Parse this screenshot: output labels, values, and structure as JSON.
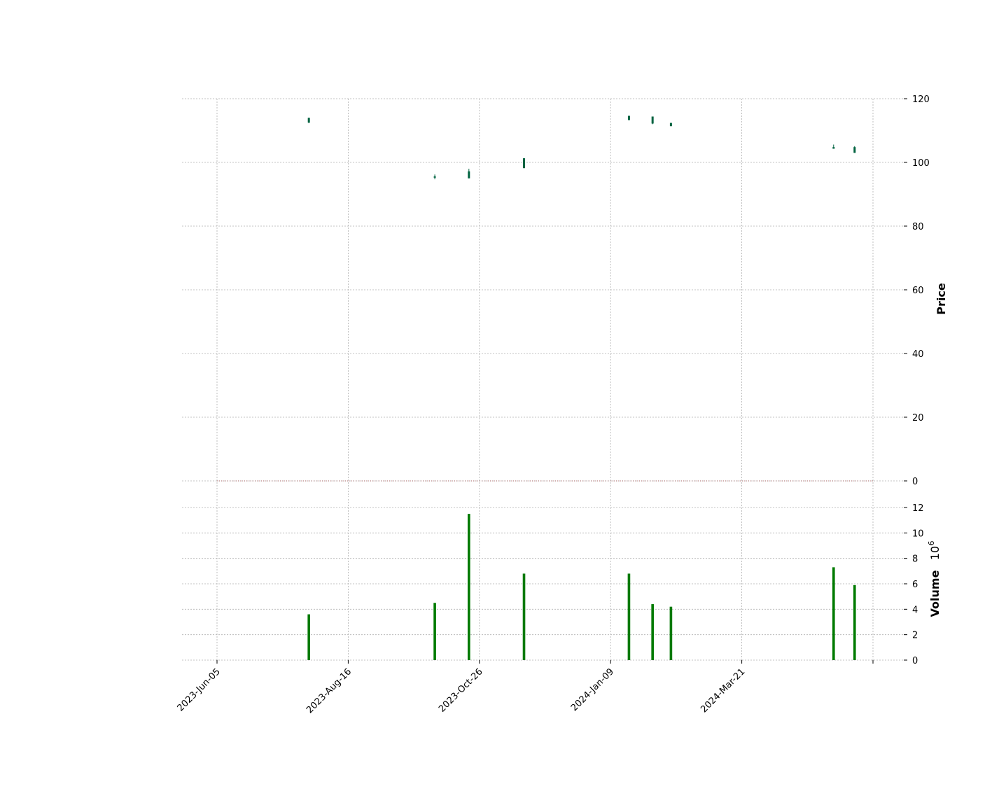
{
  "chart_data": {
    "type": "candlestick",
    "price_ylabel": "Price",
    "volume_ylabel": "Volume",
    "volume_scale_label": "10",
    "volume_scale_exponent": "6",
    "price_ylim": [
      0,
      120
    ],
    "price_yticks": [
      "0",
      "20",
      "40",
      "60",
      "80",
      "100",
      "120"
    ],
    "volume_ylim": [
      0,
      12
    ],
    "volume_yticks": [
      "0",
      "2",
      "4",
      "6",
      "8",
      "10",
      "12"
    ],
    "xlim_index": [
      0,
      250
    ],
    "xticks": [
      {
        "index": 0,
        "label": "2023-Jun-05"
      },
      {
        "index": 50,
        "label": "2023-Aug-16"
      },
      {
        "index": 100,
        "label": "2023-Oct-26"
      },
      {
        "index": 150,
        "label": "2024-Jan-09"
      },
      {
        "index": 200,
        "label": "2024-Mar-21"
      },
      {
        "index": 250,
        "label": ""
      }
    ],
    "grid": true,
    "up_color": "#006340",
    "volume_color": "#007a00",
    "zero_line_color": "#8b0000",
    "candles": [
      {
        "index": 35,
        "open": 112.5,
        "high": 114.0,
        "low": 112.3,
        "close": 114.0,
        "volume": 3.6
      },
      {
        "index": 83,
        "open": 95.2,
        "high": 96.2,
        "low": 94.7,
        "close": 95.6,
        "volume": 4.5
      },
      {
        "index": 96,
        "open": 95.0,
        "high": 98.0,
        "low": 95.0,
        "close": 97.2,
        "volume": 11.5
      },
      {
        "index": 117,
        "open": 98.2,
        "high": 101.3,
        "low": 98.2,
        "close": 101.3,
        "volume": 6.8
      },
      {
        "index": 157,
        "open": 113.3,
        "high": 114.7,
        "low": 113.2,
        "close": 114.6,
        "volume": 6.8
      },
      {
        "index": 166,
        "open": 112.2,
        "high": 114.4,
        "low": 112.0,
        "close": 114.4,
        "volume": 4.4
      },
      {
        "index": 173,
        "open": 111.4,
        "high": 112.4,
        "low": 111.3,
        "close": 112.4,
        "volume": 4.2
      },
      {
        "index": 235,
        "open": 104.3,
        "high": 105.6,
        "low": 104.3,
        "close": 104.8,
        "volume": 7.3
      },
      {
        "index": 243,
        "open": 103.0,
        "high": 105.1,
        "low": 103.0,
        "close": 104.8,
        "volume": 5.9
      }
    ]
  }
}
